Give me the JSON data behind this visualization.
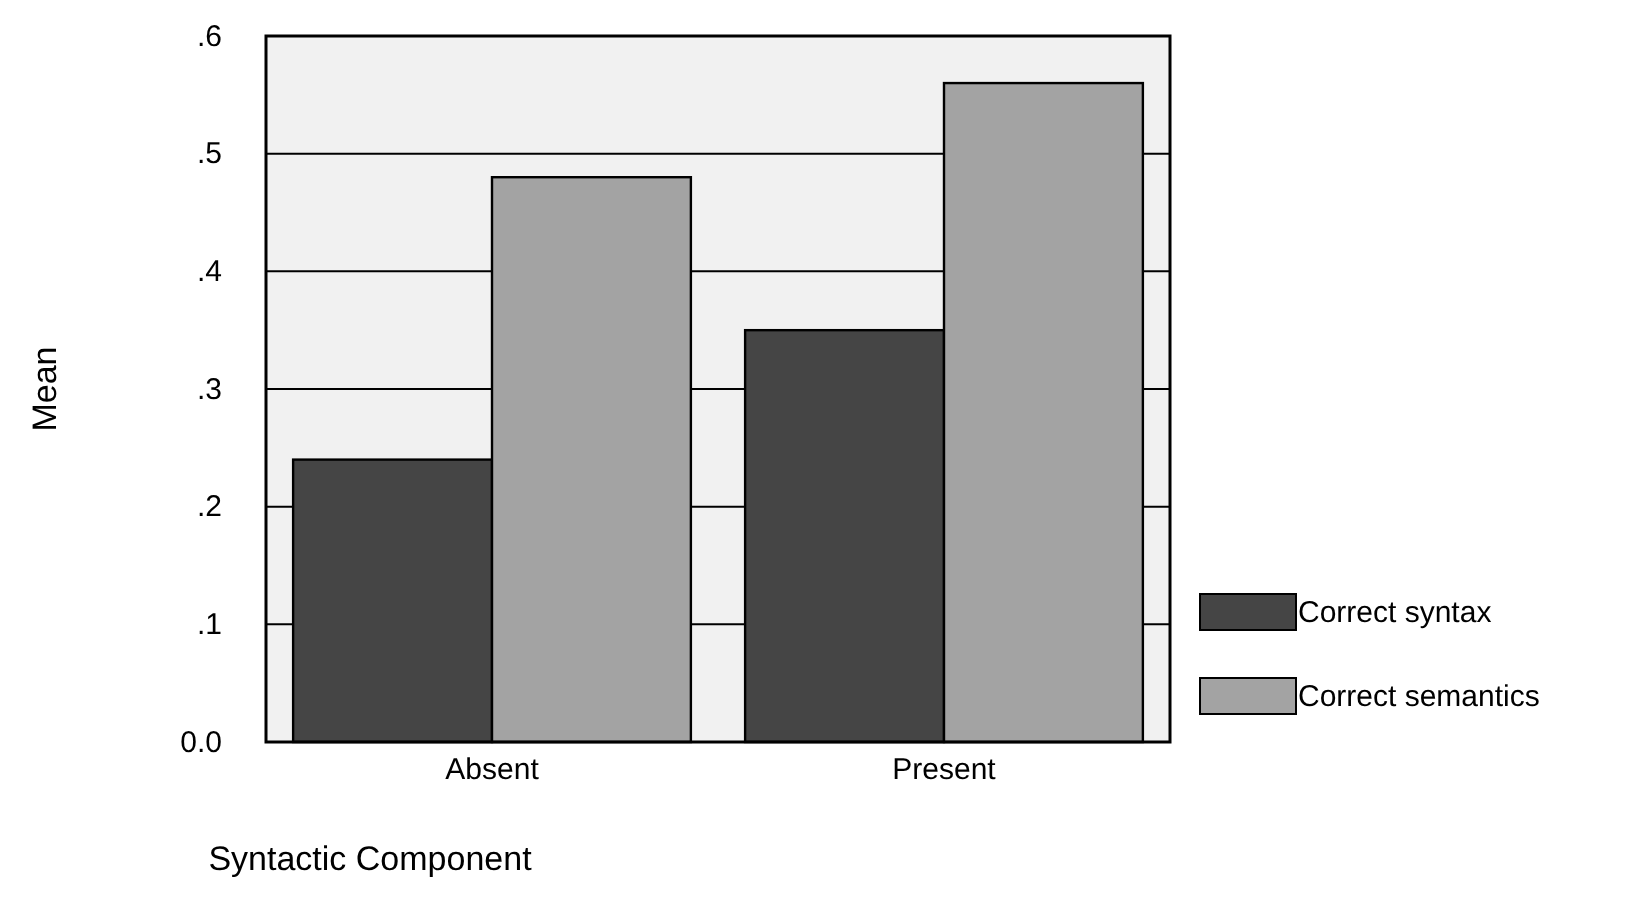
{
  "chart_data": {
    "type": "bar",
    "xlabel": "Syntactic Component",
    "ylabel": "Mean",
    "categories": [
      "Absent",
      "Present"
    ],
    "series": [
      {
        "name": "Correct syntax",
        "color": "#454545",
        "values": [
          0.24,
          0.35
        ]
      },
      {
        "name": "Correct semantics",
        "color": "#a3a3a3",
        "values": [
          0.48,
          0.56
        ]
      }
    ],
    "ylim": [
      0,
      0.6
    ],
    "yticks": [
      {
        "value": 0,
        "label": "0.0"
      },
      {
        "value": 0.1,
        "label": ".1"
      },
      {
        "value": 0.2,
        "label": ".2"
      },
      {
        "value": 0.3,
        "label": ".3"
      },
      {
        "value": 0.4,
        "label": ".4"
      },
      {
        "value": 0.5,
        "label": ".5"
      },
      {
        "value": 0.6,
        "label": ".6"
      }
    ],
    "grid": "y",
    "legend": "bottom right"
  }
}
